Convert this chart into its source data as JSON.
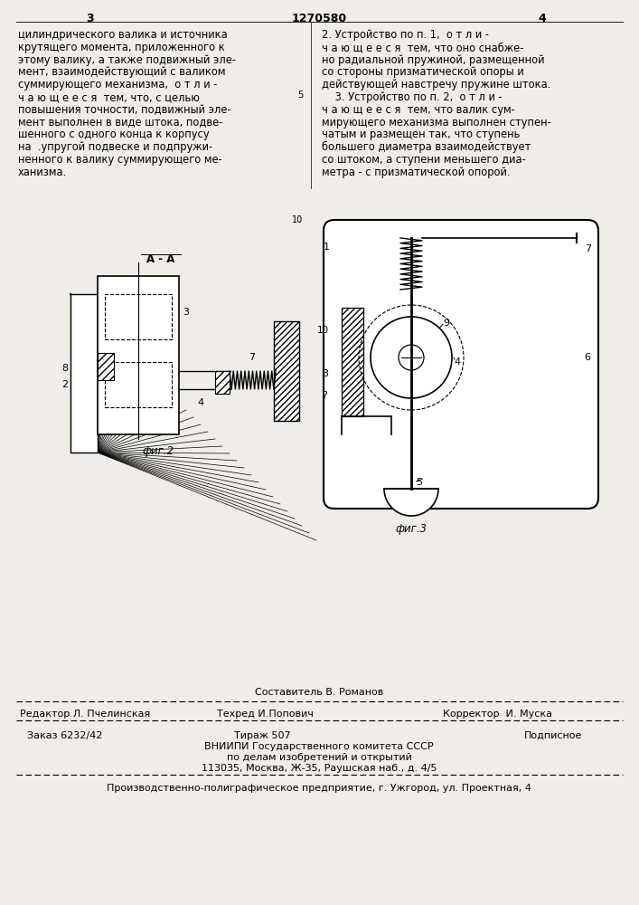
{
  "bg_color": "#f0ede8",
  "page_number_left": "3",
  "page_number_center": "1270580",
  "page_number_right": "4",
  "text_left_col": "цилиндрического валика и источника\nкрутящего момента, приложенного к\nэтому валику, а также подвижный эле-\nмент, взаимодействующий с валиком\nсуммирующего механизма,  о т л и -\nч а ю щ е е с я  тем, что, с целью\nповышения точности, подвижный эле-\nмент выполнен в виде штока, подве-\nшенного с одного конца к корпусу\nна  .упругой подвеске и подпружи-\nненного к валику суммирующего ме-\nханизма.",
  "text_right_col": "2. Устройство по п. 1,  о т л и -\nч а ю щ е е с я  тем, что оно снабже-\nно радиальной пружиной, размещенной\nсо стороны призматической опоры и\nдействующей навстречу пружине штока.\n    3. Устройство по п. 2,  о т л и -\nч а ю щ е е с я  тем, что валик сум-\nмирующего механизма выполнен ступен-\nчатым и размещен так, что ступень\nбольшего диаметра взаимодействует\nсо штоком, а ступени меньшего диа-\nметра - с призматической опорой.",
  "fig2_label": "А - А",
  "fig2_caption": "фиг.2",
  "fig3_caption": "фиг.3",
  "editor_label": "Составитель В. Романов",
  "editor_line": "Редактор Л. Пчелинская     Техред И.Попович          Корректор  И. Муска",
  "order_line": "Заказ 6232/42",
  "tirazh_line": "Тираж 507",
  "podpisnoe_line": "Подписное",
  "vniip_line": "ВНИИПИ Государственного комитета СССР",
  "vniip_line2": "по делам изобретений и открытий",
  "vniip_line3": "113035, Москва, Ж-35, Раушская наб., д. 4/5",
  "factory_line": "Производственно-полиграфическое предприятие, г. Ужгород, ул. Проектная, 4"
}
